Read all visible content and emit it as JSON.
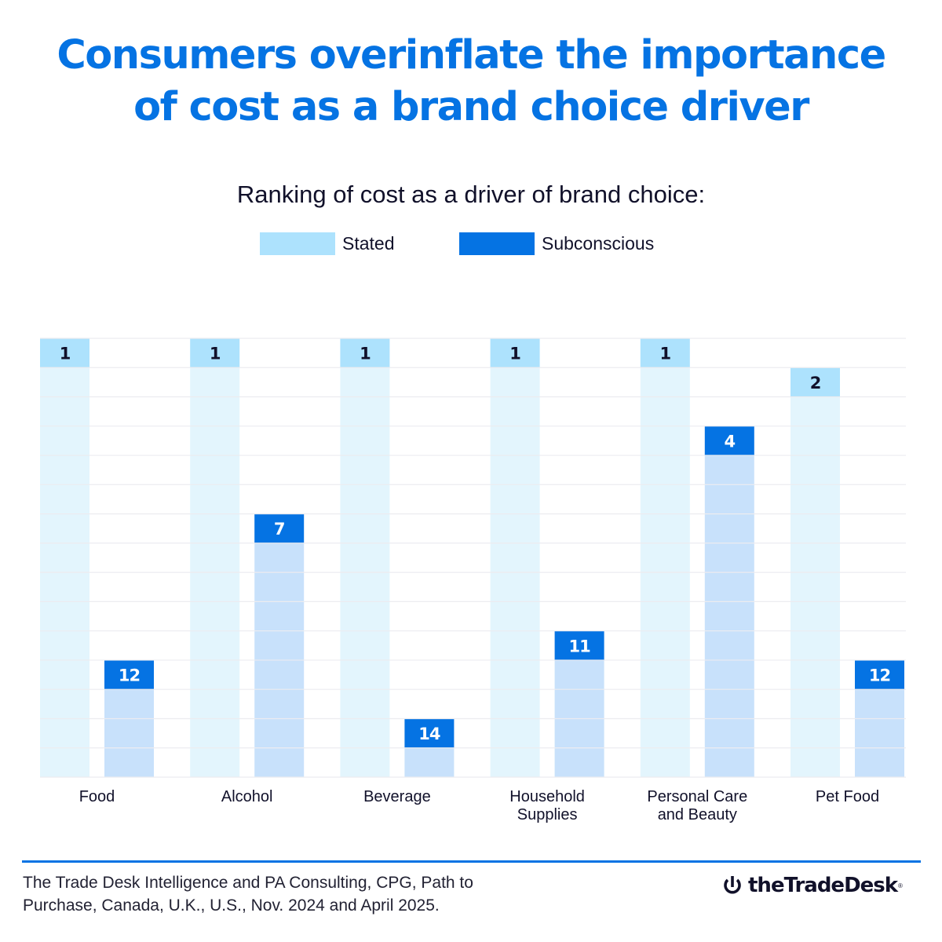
{
  "header": {
    "title_line1": "Consumers overinflate the importance",
    "title_line2": "of cost as a brand choice driver"
  },
  "colors": {
    "title": "#0573e3",
    "stated": "#ade2fd",
    "stated_fill": "#e3f5fd",
    "subconscious": "#0573e3",
    "subconscious_fill": "#c8e1fb",
    "gridline": "#ececf0",
    "text_dark": "#11112a"
  },
  "chart_data": {
    "type": "bar",
    "title": "Ranking of cost as a driver of brand choice:",
    "xlabel": "",
    "ylabel": "",
    "ylim": [
      15,
      1
    ],
    "y_direction": "rank (1 = top)",
    "grid": true,
    "legend": [
      "Stated",
      "Subconscious"
    ],
    "legend_position": "top-center",
    "categories": [
      [
        "Food"
      ],
      [
        "Alcohol"
      ],
      [
        "Beverage"
      ],
      [
        "Household",
        "Supplies"
      ],
      [
        "Personal Care",
        "and Beauty"
      ],
      [
        "Pet Food"
      ]
    ],
    "series": [
      {
        "name": "Stated",
        "values": [
          1,
          1,
          1,
          1,
          1,
          2
        ]
      },
      {
        "name": "Subconscious",
        "values": [
          12,
          7,
          14,
          11,
          4,
          12
        ]
      }
    ]
  },
  "footer": {
    "source_line1": "The Trade Desk Intelligence and PA Consulting, CPG, Path to",
    "source_line2": "Purchase, Canada, U.K., U.S., Nov. 2024 and April 2025.",
    "logo_text": "theTradeDesk",
    "logo_reg": "®"
  }
}
